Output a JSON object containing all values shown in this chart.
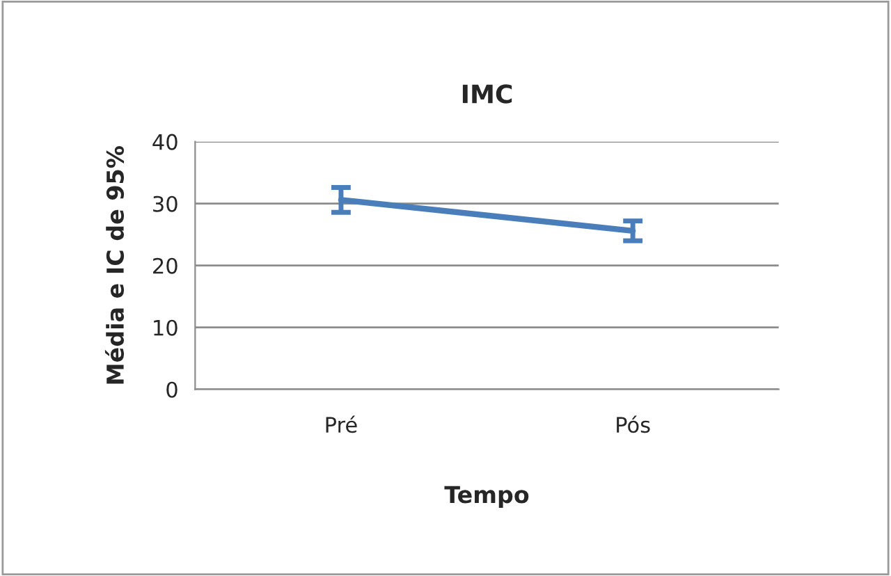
{
  "chart_data": {
    "type": "line",
    "title": "IMC",
    "xlabel": "Tempo",
    "ylabel": "Média e IC de 95%",
    "categories": [
      "Pré",
      "Pós"
    ],
    "series": [
      {
        "color": "#4a7ebb",
        "values": [
          30.6,
          25.6
        ],
        "errors": [
          2.0,
          1.6
        ]
      }
    ],
    "ylim": [
      0,
      40
    ],
    "yticks": [
      0,
      10,
      20,
      30,
      40
    ],
    "grid": "y",
    "marker": "none",
    "line_style": "solid"
  }
}
